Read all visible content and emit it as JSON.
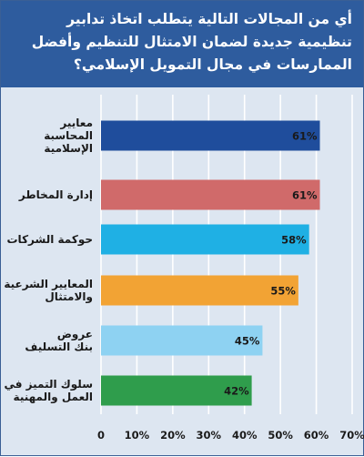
{
  "header": {
    "question": "أي من المجالات التالية يتطلب اتخاذ تدابير تنظيمية جديدة لضمان الامتثال للتنظيم وأفضل الممارسات في مجال التمويل الإسلامي؟"
  },
  "colors": {
    "header_bg": "#2e5c9e",
    "plot_bg": "#dde6f1",
    "grid": "#ffffff"
  },
  "chart_data": {
    "type": "bar",
    "orientation": "horizontal",
    "categories": [
      "معايير المحاسبة الإسلامية",
      "إدارة المخاطر",
      "حوكمة الشركات",
      "المعايير الشرعية والامتثال",
      "عروض بنك التسليف",
      "سلوك التميز في العمل والمهنية"
    ],
    "category_lines": [
      [
        "معايير",
        "المحاسبة",
        "الإسلامية"
      ],
      [
        "إدارة المخاطر"
      ],
      [
        "حوكمة الشركات"
      ],
      [
        "المعايير الشرعية",
        "والامتثال"
      ],
      [
        "عروض",
        "بنك التسليف"
      ],
      [
        "سلوك التميز في",
        "العمل والمهنية"
      ]
    ],
    "values": [
      61,
      61,
      58,
      55,
      45,
      42
    ],
    "value_labels": [
      "61%",
      "61%",
      "58%",
      "55%",
      "45%",
      "42%"
    ],
    "bar_colors": [
      "#1f4d9c",
      "#d06a6a",
      "#1fb0e4",
      "#f2a334",
      "#8ed2f2",
      "#2f9d4c"
    ],
    "xlim": [
      0,
      70
    ],
    "x_ticks": [
      0,
      10,
      20,
      30,
      40,
      50,
      60,
      70
    ],
    "x_tick_labels": [
      "0",
      "10%",
      "20%",
      "30%",
      "40%",
      "50%",
      "60%",
      "70%"
    ],
    "grid": true
  }
}
